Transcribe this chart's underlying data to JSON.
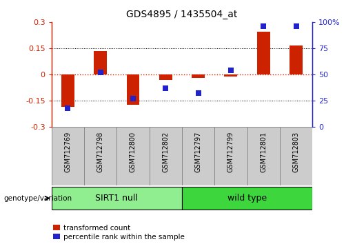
{
  "title": "GDS4895 / 1435504_at",
  "samples": [
    "GSM712769",
    "GSM712798",
    "GSM712800",
    "GSM712802",
    "GSM712797",
    "GSM712799",
    "GSM712801",
    "GSM712803"
  ],
  "transformed_count": [
    -0.185,
    0.135,
    -0.175,
    -0.03,
    -0.02,
    -0.01,
    0.245,
    0.165
  ],
  "percentile_rank": [
    18,
    52,
    27,
    37,
    32,
    54,
    96,
    96
  ],
  "groups": [
    {
      "label": "SIRT1 null",
      "start": 0,
      "end": 4,
      "color": "#90EE90"
    },
    {
      "label": "wild type",
      "start": 4,
      "end": 8,
      "color": "#3DD63D"
    }
  ],
  "ylim_left": [
    -0.3,
    0.3
  ],
  "ylim_right": [
    0,
    100
  ],
  "yticks_left": [
    -0.3,
    -0.15,
    0,
    0.15,
    0.3
  ],
  "yticks_right": [
    0,
    25,
    50,
    75,
    100
  ],
  "ytick_labels_left": [
    "-0.3",
    "-0.15",
    "0",
    "0.15",
    "0.3"
  ],
  "ytick_labels_right": [
    "0",
    "25",
    "50",
    "75",
    "100%"
  ],
  "bar_color": "#CC2200",
  "dot_color": "#2222CC",
  "hline_color": "#CC2200",
  "dotted_line_color": "#000000",
  "background_color": "#FFFFFF",
  "bar_width": 0.4,
  "dot_size": 40,
  "legend_items": [
    "transformed count",
    "percentile rank within the sample"
  ],
  "genotype_label": "genotype/variation",
  "sample_box_color": "#CCCCCC",
  "sample_box_edge": "#888888"
}
